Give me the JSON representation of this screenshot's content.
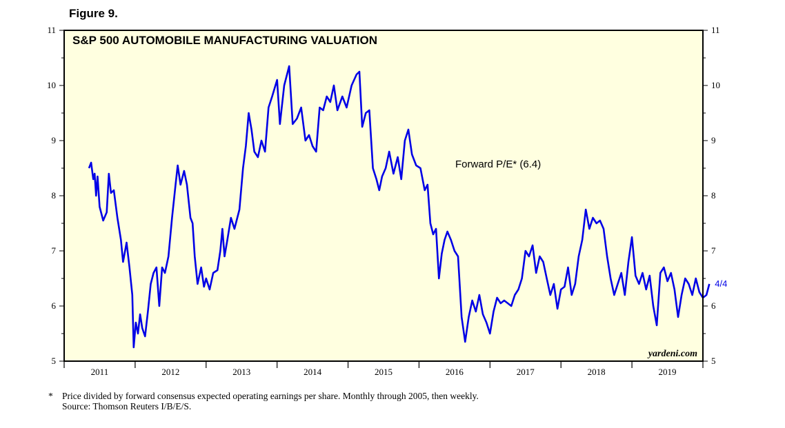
{
  "figure_label": "Figure 9.",
  "chart_data": {
    "type": "line",
    "title": "S&P 500 AUTOMOBILE MANUFACTURING VALUATION",
    "series": [
      {
        "name": "Forward P/E* (6.4)",
        "color": "#0000e6",
        "end_label": "4/4",
        "points": [
          [
            2010.85,
            8.5
          ],
          [
            2010.88,
            8.6
          ],
          [
            2010.91,
            8.3
          ],
          [
            2010.93,
            8.4
          ],
          [
            2010.95,
            8.0
          ],
          [
            2010.97,
            8.35
          ],
          [
            2011.0,
            7.8
          ],
          [
            2011.05,
            7.55
          ],
          [
            2011.1,
            7.7
          ],
          [
            2011.13,
            8.4
          ],
          [
            2011.16,
            8.05
          ],
          [
            2011.2,
            8.1
          ],
          [
            2011.25,
            7.6
          ],
          [
            2011.3,
            7.2
          ],
          [
            2011.33,
            6.8
          ],
          [
            2011.38,
            7.15
          ],
          [
            2011.42,
            6.7
          ],
          [
            2011.46,
            6.2
          ],
          [
            2011.48,
            5.25
          ],
          [
            2011.51,
            5.7
          ],
          [
            2011.54,
            5.5
          ],
          [
            2011.57,
            5.85
          ],
          [
            2011.6,
            5.6
          ],
          [
            2011.64,
            5.45
          ],
          [
            2011.68,
            5.9
          ],
          [
            2011.72,
            6.4
          ],
          [
            2011.76,
            6.6
          ],
          [
            2011.8,
            6.7
          ],
          [
            2011.84,
            6.0
          ],
          [
            2011.88,
            6.7
          ],
          [
            2011.92,
            6.6
          ],
          [
            2011.97,
            6.9
          ],
          [
            2012.02,
            7.6
          ],
          [
            2012.07,
            8.2
          ],
          [
            2012.1,
            8.55
          ],
          [
            2012.14,
            8.2
          ],
          [
            2012.19,
            8.45
          ],
          [
            2012.23,
            8.2
          ],
          [
            2012.28,
            7.6
          ],
          [
            2012.31,
            7.5
          ],
          [
            2012.34,
            6.9
          ],
          [
            2012.38,
            6.4
          ],
          [
            2012.43,
            6.7
          ],
          [
            2012.47,
            6.35
          ],
          [
            2012.5,
            6.5
          ],
          [
            2012.55,
            6.3
          ],
          [
            2012.6,
            6.6
          ],
          [
            2012.66,
            6.65
          ],
          [
            2012.7,
            7.0
          ],
          [
            2012.73,
            7.4
          ],
          [
            2012.76,
            6.9
          ],
          [
            2012.8,
            7.2
          ],
          [
            2012.85,
            7.6
          ],
          [
            2012.9,
            7.4
          ],
          [
            2012.97,
            7.75
          ],
          [
            2013.02,
            8.5
          ],
          [
            2013.06,
            8.9
          ],
          [
            2013.1,
            9.5
          ],
          [
            2013.14,
            9.2
          ],
          [
            2013.18,
            8.8
          ],
          [
            2013.23,
            8.7
          ],
          [
            2013.28,
            9.0
          ],
          [
            2013.33,
            8.8
          ],
          [
            2013.38,
            9.6
          ],
          [
            2013.43,
            9.8
          ],
          [
            2013.5,
            10.1
          ],
          [
            2013.54,
            9.3
          ],
          [
            2013.6,
            10.0
          ],
          [
            2013.67,
            10.35
          ],
          [
            2013.72,
            9.3
          ],
          [
            2013.78,
            9.4
          ],
          [
            2013.84,
            9.6
          ],
          [
            2013.9,
            9.0
          ],
          [
            2013.95,
            9.1
          ],
          [
            2014.0,
            8.9
          ],
          [
            2014.05,
            8.8
          ],
          [
            2014.1,
            9.6
          ],
          [
            2014.15,
            9.55
          ],
          [
            2014.2,
            9.8
          ],
          [
            2014.25,
            9.7
          ],
          [
            2014.3,
            10.0
          ],
          [
            2014.35,
            9.55
          ],
          [
            2014.42,
            9.8
          ],
          [
            2014.48,
            9.6
          ],
          [
            2014.55,
            10.0
          ],
          [
            2014.62,
            10.2
          ],
          [
            2014.66,
            10.25
          ],
          [
            2014.7,
            9.25
          ],
          [
            2014.75,
            9.5
          ],
          [
            2014.8,
            9.55
          ],
          [
            2014.85,
            8.5
          ],
          [
            2014.9,
            8.3
          ],
          [
            2014.94,
            8.1
          ],
          [
            2014.98,
            8.35
          ],
          [
            2015.03,
            8.5
          ],
          [
            2015.08,
            8.8
          ],
          [
            2015.14,
            8.4
          ],
          [
            2015.2,
            8.7
          ],
          [
            2015.25,
            8.3
          ],
          [
            2015.3,
            9.0
          ],
          [
            2015.35,
            9.2
          ],
          [
            2015.4,
            8.75
          ],
          [
            2015.46,
            8.55
          ],
          [
            2015.52,
            8.5
          ],
          [
            2015.58,
            8.1
          ],
          [
            2015.62,
            8.2
          ],
          [
            2015.66,
            7.5
          ],
          [
            2015.7,
            7.3
          ],
          [
            2015.74,
            7.4
          ],
          [
            2015.78,
            6.5
          ],
          [
            2015.82,
            6.95
          ],
          [
            2015.86,
            7.2
          ],
          [
            2015.9,
            7.35
          ],
          [
            2015.95,
            7.2
          ],
          [
            2016.0,
            7.0
          ],
          [
            2016.05,
            6.9
          ],
          [
            2016.1,
            5.8
          ],
          [
            2016.15,
            5.35
          ],
          [
            2016.2,
            5.8
          ],
          [
            2016.25,
            6.1
          ],
          [
            2016.3,
            5.9
          ],
          [
            2016.35,
            6.2
          ],
          [
            2016.4,
            5.85
          ],
          [
            2016.45,
            5.7
          ],
          [
            2016.5,
            5.5
          ],
          [
            2016.55,
            5.9
          ],
          [
            2016.6,
            6.15
          ],
          [
            2016.65,
            6.05
          ],
          [
            2016.7,
            6.1
          ],
          [
            2016.75,
            6.05
          ],
          [
            2016.8,
            6.0
          ],
          [
            2016.85,
            6.2
          ],
          [
            2016.9,
            6.3
          ],
          [
            2016.95,
            6.5
          ],
          [
            2017.0,
            7.0
          ],
          [
            2017.05,
            6.9
          ],
          [
            2017.1,
            7.1
          ],
          [
            2017.15,
            6.6
          ],
          [
            2017.2,
            6.9
          ],
          [
            2017.25,
            6.8
          ],
          [
            2017.3,
            6.5
          ],
          [
            2017.35,
            6.2
          ],
          [
            2017.4,
            6.4
          ],
          [
            2017.45,
            5.95
          ],
          [
            2017.5,
            6.3
          ],
          [
            2017.55,
            6.35
          ],
          [
            2017.6,
            6.7
          ],
          [
            2017.65,
            6.2
          ],
          [
            2017.7,
            6.4
          ],
          [
            2017.75,
            6.9
          ],
          [
            2017.8,
            7.2
          ],
          [
            2017.85,
            7.75
          ],
          [
            2017.9,
            7.4
          ],
          [
            2017.95,
            7.6
          ],
          [
            2018.0,
            7.5
          ],
          [
            2018.05,
            7.55
          ],
          [
            2018.1,
            7.4
          ],
          [
            2018.15,
            6.9
          ],
          [
            2018.2,
            6.5
          ],
          [
            2018.25,
            6.2
          ],
          [
            2018.3,
            6.4
          ],
          [
            2018.35,
            6.6
          ],
          [
            2018.4,
            6.2
          ],
          [
            2018.45,
            6.8
          ],
          [
            2018.5,
            7.25
          ],
          [
            2018.55,
            6.55
          ],
          [
            2018.6,
            6.4
          ],
          [
            2018.65,
            6.6
          ],
          [
            2018.7,
            6.3
          ],
          [
            2018.75,
            6.55
          ],
          [
            2018.8,
            6.0
          ],
          [
            2018.85,
            5.65
          ],
          [
            2018.9,
            6.6
          ],
          [
            2018.95,
            6.7
          ],
          [
            2019.0,
            6.45
          ],
          [
            2019.05,
            6.6
          ],
          [
            2019.1,
            6.3
          ],
          [
            2019.15,
            5.8
          ],
          [
            2019.2,
            6.2
          ],
          [
            2019.25,
            6.5
          ],
          [
            2019.3,
            6.4
          ],
          [
            2019.35,
            6.2
          ],
          [
            2019.4,
            6.5
          ],
          [
            2019.45,
            6.25
          ],
          [
            2019.5,
            6.15
          ],
          [
            2019.55,
            6.2
          ],
          [
            2019.59,
            6.4
          ]
        ]
      }
    ],
    "x_range": [
      2010.5,
      2019.5
    ],
    "x_ticks": [
      "2011",
      "2012",
      "2013",
      "2014",
      "2015",
      "2016",
      "2017",
      "2018",
      "2019"
    ],
    "ylim": [
      5,
      11
    ],
    "y_ticks": [
      "5",
      "6",
      "7",
      "8",
      "9",
      "10",
      "11"
    ],
    "legend_text": "Forward P/E* (6.4)",
    "watermark": "yardeni.com",
    "grid": false,
    "background": "#ffffe0"
  },
  "footnotes": {
    "marker": "*",
    "line1": "Price divided by forward consensus expected operating earnings per share. Monthly through 2005, then weekly.",
    "line2": "Source: Thomson Reuters I/B/E/S."
  }
}
